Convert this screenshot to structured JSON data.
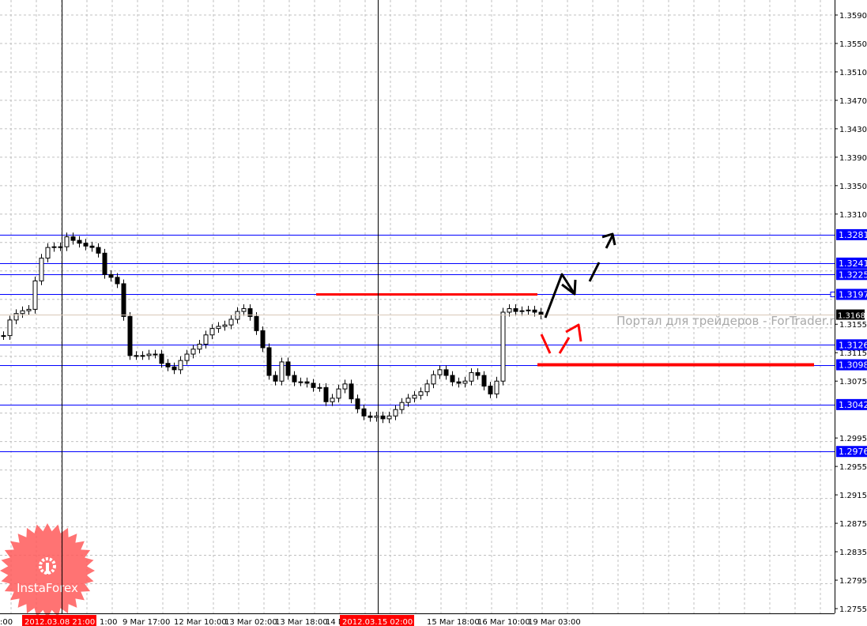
{
  "chart_data": {
    "type": "candlestick",
    "symbol_hint": "",
    "y_axis": {
      "range": [
        1.2755,
        1.359
      ],
      "ticks": [
        "1.3590",
        "1.3550",
        "1.3510",
        "1.3470",
        "1.3430",
        "1.3390",
        "1.3350",
        "1.3310",
        "1.3270",
        "1.3230",
        "1.3190",
        "1.3155",
        "1.3115",
        "1.3075",
        "1.3035",
        "1.2995",
        "1.2955",
        "1.2915",
        "1.2875",
        "1.2835",
        "1.2795",
        "1.2755"
      ],
      "visible_ticks": [
        "1.3590",
        "1.3550",
        "1.3510",
        "1.3470",
        "1.3430",
        "1.3390",
        "1.3350",
        "1.3310",
        "1.3155",
        "1.3115",
        "1.3075",
        "1.2995",
        "1.2955",
        "1.2915",
        "1.2875",
        "1.2835",
        "1.2795",
        "1.2755"
      ]
    },
    "x_axis": {
      "labels": [
        {
          "text": ":00"
        },
        {
          "text": "1:00"
        },
        {
          "text": "9 Mar 17:00"
        },
        {
          "text": "12 Mar 10:00"
        },
        {
          "text": "13 Mar 02:00"
        },
        {
          "text": "13 Mar 18:00"
        },
        {
          "text": "14 M"
        },
        {
          "text": "15 Mar 18:00"
        },
        {
          "text": "16 Mar 10:00"
        },
        {
          "text": "19 Mar 03:00"
        }
      ],
      "highlighted_dates": [
        "2012.03.08 21:00",
        "2012.03.15 02:00"
      ]
    },
    "grid": true,
    "closes": [
      1.3139,
      1.3161,
      1.317,
      1.3174,
      1.3176,
      1.3216,
      1.3248,
      1.3263,
      1.3264,
      1.3264,
      1.3278,
      1.3273,
      1.3269,
      1.3265,
      1.3263,
      1.3255,
      1.3225,
      1.3221,
      1.3212,
      1.3166,
      1.3111,
      1.3111,
      1.3111,
      1.3113,
      1.3113,
      1.31,
      1.3095,
      1.3091,
      1.3104,
      1.3113,
      1.312,
      1.3127,
      1.314,
      1.3149,
      1.3152,
      1.3154,
      1.3162,
      1.3173,
      1.3177,
      1.3166,
      1.3146,
      1.3122,
      1.3083,
      1.3075,
      1.3102,
      1.3083,
      1.3074,
      1.3074,
      1.3072,
      1.3066,
      1.3066,
      1.3046,
      1.3051,
      1.3064,
      1.3071,
      1.305,
      1.3036,
      1.3026,
      1.3024,
      1.3026,
      1.3022,
      1.3026,
      1.3035,
      1.3045,
      1.3051,
      1.3055,
      1.306,
      1.3071,
      1.3084,
      1.3091,
      1.3083,
      1.3074,
      1.3072,
      1.3075,
      1.3087,
      1.3083,
      1.3068,
      1.3057,
      1.3075,
      1.3172,
      1.3177,
      1.3173,
      1.3174,
      1.3175,
      1.3172,
      1.3168
    ],
    "current_price": "1.3168",
    "levels": [
      "1.3281",
      "1.3241",
      "1.3225",
      "1.3197",
      "1.3126",
      "1.3098",
      "1.3042",
      "1.2976"
    ],
    "red_levels": [
      "1.3197",
      "1.3098"
    ],
    "colors": {
      "level_line": "#0000ff",
      "level_label_bg": "#0000ff",
      "red_level": "#ff0000",
      "date_label_bg": "#ff0000",
      "candle": "#000000",
      "grid": "#c0c0c0",
      "price_label_bg": "#000000"
    },
    "annotations": [
      "black arrow up (bullish scenario)",
      "red arrow down then up (bearish pullback scenario)"
    ]
  },
  "watermark": "Портал для трейдеров - ForTrader.ru",
  "logo": {
    "text": "InstaForex",
    "color": "#ff5a5a"
  }
}
